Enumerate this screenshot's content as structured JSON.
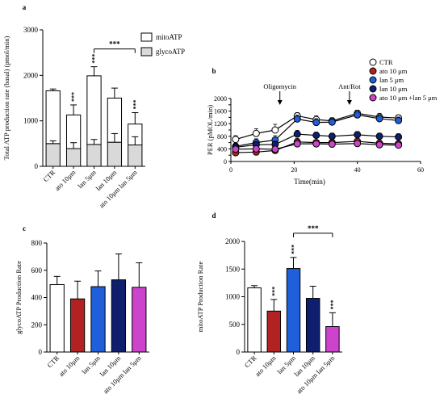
{
  "chart_data": [
    {
      "panel": "a",
      "type": "bar",
      "stacked": true,
      "ylabel": "Total ATP production rate (basal) (pmol/min)",
      "ylim": [
        0,
        3000
      ],
      "yticks": [
        "0",
        "1000",
        "2000",
        "3000"
      ],
      "categories": [
        "CTR",
        "ato 10μm",
        "lan 5μm",
        "lan 10μm",
        "ato 10μm lan 5μm"
      ],
      "series": [
        {
          "name": "glycoATP",
          "values": [
            500,
            390,
            480,
            530,
            470
          ],
          "err": [
            60,
            130,
            110,
            190,
            180
          ],
          "color": "#d9d9d9"
        },
        {
          "name": "mitoATP",
          "values": [
            1160,
            740,
            1510,
            970,
            460
          ],
          "err": [
            40,
            220,
            200,
            220,
            250
          ],
          "color": "#ffffff"
        }
      ],
      "annotations": {
        "stars": [
          "",
          "***",
          "***",
          "",
          "***"
        ],
        "bracket": "***"
      },
      "legend": "top-right"
    },
    {
      "panel": "b",
      "type": "line",
      "ylabel": "PER (pMOL/min)",
      "xlabel": "Time(min)",
      "xlim": [
        0,
        60
      ],
      "ylim": [
        0,
        2000
      ],
      "xticks": [
        "0",
        "20",
        "40",
        "60"
      ],
      "yticks": [
        "0",
        "200",
        "400",
        "600",
        "800",
        "1000",
        "1200",
        "1400",
        "1600",
        "1800",
        "2000"
      ],
      "x": [
        1.5,
        8,
        14,
        21,
        27,
        32,
        40,
        47,
        53
      ],
      "series": [
        {
          "name": "CTR",
          "color": "#ffffff",
          "values": [
            700,
            890,
            1000,
            1450,
            1330,
            1290,
            1530,
            1410,
            1380
          ],
          "err": [
            120,
            150,
            180,
            100,
            120,
            100,
            100,
            120,
            100
          ]
        },
        {
          "name": "ato 10 μm",
          "color": "#b22222",
          "values": [
            280,
            300,
            350,
            620,
            600,
            600,
            640,
            580,
            560
          ],
          "err": [
            60,
            60,
            70,
            110,
            80,
            80,
            80,
            80,
            80
          ]
        },
        {
          "name": "lan 5 μm",
          "color": "#1f5fd9",
          "values": [
            480,
            600,
            680,
            1350,
            1240,
            1250,
            1480,
            1360,
            1300
          ],
          "err": [
            100,
            120,
            140,
            120,
            120,
            110,
            110,
            110,
            110
          ]
        },
        {
          "name": "lan 10 μm",
          "color": "#0f1f6e",
          "values": [
            450,
            530,
            540,
            870,
            830,
            800,
            850,
            800,
            780
          ],
          "err": [
            90,
            90,
            100,
            120,
            100,
            100,
            100,
            100,
            100
          ]
        },
        {
          "name": "ato 10 μm +lan 5 μm",
          "color": "#cc44cc",
          "values": [
            390,
            400,
            390,
            560,
            560,
            550,
            570,
            530,
            520
          ],
          "err": [
            80,
            80,
            80,
            100,
            80,
            80,
            80,
            80,
            80
          ]
        }
      ],
      "annotations": {
        "oligomycin": "Oligomycin",
        "antrot": "Ant/Rot"
      },
      "legend": "top-right"
    },
    {
      "panel": "c",
      "type": "bar",
      "ylabel": "glycoATP Production Rate",
      "ylim": [
        0,
        800
      ],
      "yticks": [
        "0",
        "200",
        "400",
        "600",
        "800"
      ],
      "categories": [
        "CTR",
        "ato 10μm",
        "lan 5μm",
        "lan 10μm",
        "ato 10μm lan 5μm"
      ],
      "values": [
        495,
        390,
        480,
        530,
        475
      ],
      "err": [
        60,
        130,
        115,
        190,
        180
      ],
      "colors": [
        "#ffffff",
        "#b22222",
        "#1f5fd9",
        "#0f1f6e",
        "#cc44cc"
      ]
    },
    {
      "panel": "d",
      "type": "bar",
      "ylabel": "mitoATP Production Rate",
      "ylim": [
        0,
        2000
      ],
      "yticks": [
        "0",
        "500",
        "1000",
        "1500",
        "2000"
      ],
      "categories": [
        "CTR",
        "ato 10μm",
        "lan 5μm",
        "lan 10μm",
        "ato 10μm lan 5μm"
      ],
      "values": [
        1160,
        740,
        1510,
        970,
        460
      ],
      "err": [
        40,
        210,
        200,
        220,
        250
      ],
      "colors": [
        "#ffffff",
        "#b22222",
        "#1f5fd9",
        "#0f1f6e",
        "#cc44cc"
      ],
      "annotations": {
        "stars": [
          "",
          "***",
          "***",
          "",
          "***"
        ],
        "bracket": "***"
      }
    }
  ]
}
